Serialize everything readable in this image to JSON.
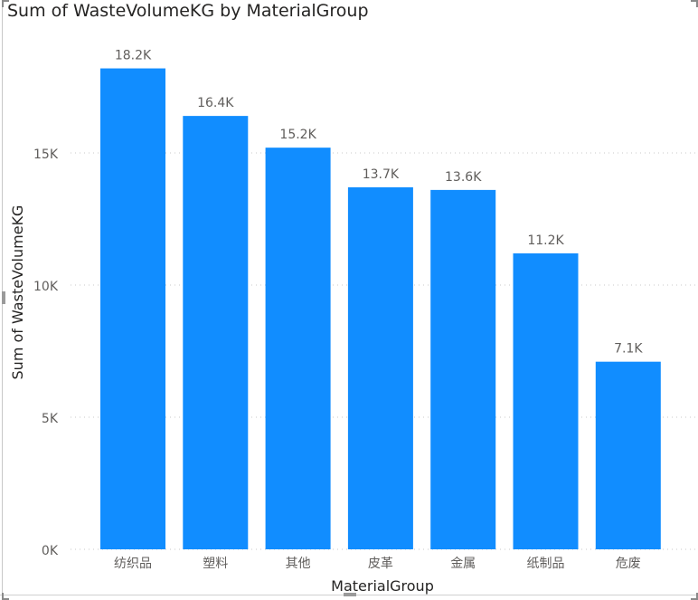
{
  "chart_data": {
    "type": "bar",
    "title": "Sum of WasteVolumeKG by MaterialGroup",
    "xlabel": "MaterialGroup",
    "ylabel": "Sum of WasteVolumeKG",
    "categories": [
      "纺织品",
      "塑料",
      "其他",
      "皮革",
      "金属",
      "纸制品",
      "危废"
    ],
    "values": [
      18200,
      16400,
      15200,
      13700,
      13600,
      11200,
      7100
    ],
    "data_labels": [
      "18.2K",
      "16.4K",
      "15.2K",
      "13.7K",
      "13.6K",
      "11.2K",
      "7.1K"
    ],
    "y_ticks": [
      0,
      5000,
      10000,
      15000
    ],
    "y_tick_labels": [
      "0K",
      "5K",
      "10K",
      "15K"
    ],
    "ylim": [
      0,
      20000
    ],
    "grid": true,
    "legend": "none",
    "bar_color": "#118DFF"
  }
}
